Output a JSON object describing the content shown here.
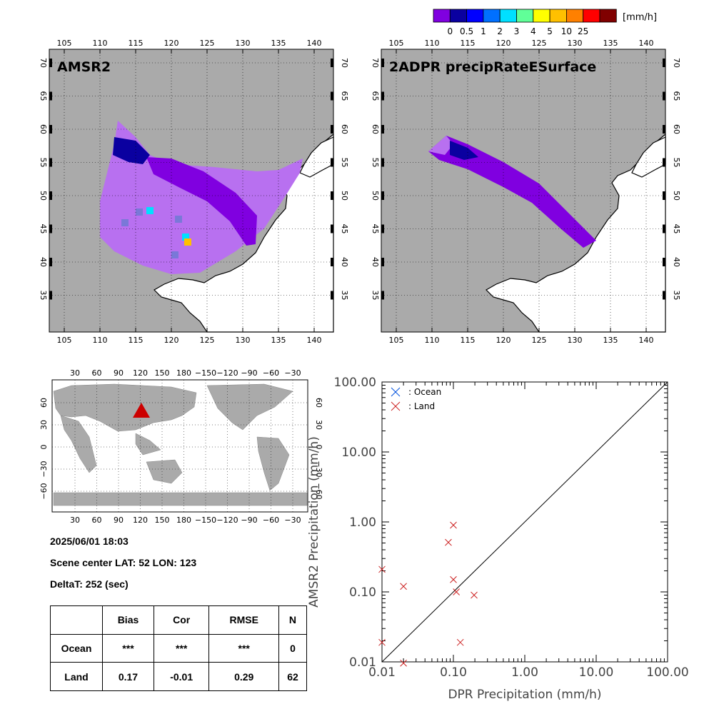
{
  "colorbar": {
    "unit": "[mm/h]",
    "colors": [
      "#8000e0",
      "#0a00a0",
      "#0000ff",
      "#0070ff",
      "#00e0ff",
      "#60ff98",
      "#ffff00",
      "#ffc000",
      "#ff8000",
      "#ff0000",
      "#800000"
    ],
    "labels": [
      "0",
      "0.5",
      "1",
      "2",
      "3",
      "4",
      "5",
      "10",
      "25"
    ]
  },
  "maps": {
    "lon_ticks": [
      "105",
      "110",
      "115",
      "120",
      "125",
      "130",
      "135",
      "140"
    ],
    "lat_ticks": [
      "70",
      "65",
      "60",
      "55",
      "50",
      "45",
      "40",
      "35"
    ],
    "amsr2": {
      "title": "AMSR2"
    },
    "dpr": {
      "title": "2ADPR precipRateESurface"
    }
  },
  "globe": {
    "lon_ticks": [
      "30",
      "60",
      "90",
      "120",
      "150",
      "180",
      "−150",
      "−120",
      "−90",
      "−60",
      "−30"
    ],
    "lat_ticks": [
      "60",
      "30",
      "0",
      "−30",
      "−60"
    ],
    "marker_color": "#cc0000"
  },
  "info": {
    "datetime": "2025/06/01 18:03",
    "center": "Scene center LAT: 52   LON: 123",
    "delta": "DeltaT:  252 (sec)"
  },
  "stats": {
    "headers": [
      "Bias",
      "Cor",
      "RMSE",
      "N"
    ],
    "rows": [
      {
        "label": "Ocean",
        "bias": "***",
        "cor": "***",
        "rmse": "***",
        "n": "0"
      },
      {
        "label": "Land",
        "bias": "0.17",
        "cor": "-0.01",
        "rmse": "0.29",
        "n": "62"
      }
    ]
  },
  "chart_data": {
    "type": "scatter",
    "x_scale": "log",
    "y_scale": "log",
    "xlim": [
      0.01,
      100
    ],
    "ylim": [
      0.01,
      100
    ],
    "xlabel": "DPR Precipitation (mm/h)",
    "ylabel": "AMSR2 Precipitation (mm/h)",
    "tick_labels": [
      "0.01",
      "0.10",
      "1.00",
      "10.00",
      "100.00"
    ],
    "diagonal": true,
    "legend": [
      {
        "name": ": Ocean",
        "color": "#0050dd"
      },
      {
        "name": ": Land",
        "color": "#cc2222"
      }
    ],
    "series": [
      {
        "name": ": Ocean",
        "x": [],
        "y": []
      },
      {
        "name": ": Land",
        "x": [
          0.01,
          0.01,
          0.02,
          0.02,
          0.085,
          0.1,
          0.1,
          0.11,
          0.125,
          0.195
        ],
        "y": [
          0.21,
          0.019,
          0.12,
          0.0096,
          0.51,
          0.9,
          0.15,
          0.1,
          0.019,
          0.09
        ]
      }
    ]
  }
}
